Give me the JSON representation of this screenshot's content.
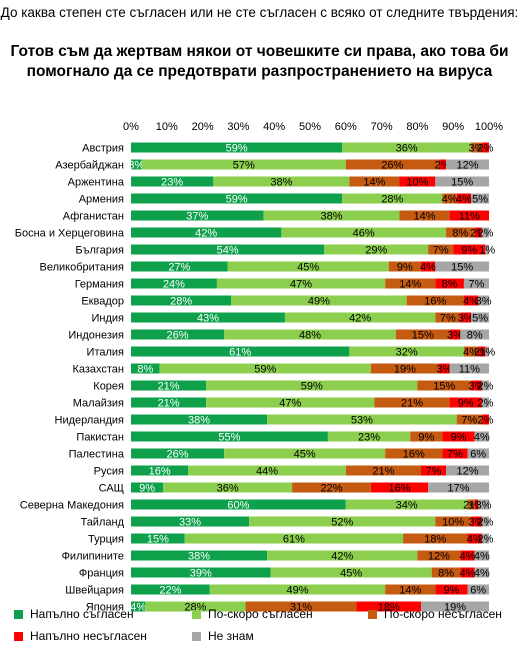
{
  "question": "До каква степен сте съгласен или не сте съгласен с всяко от следните твърдения:",
  "chart_data": {
    "type": "bar",
    "stacked": true,
    "orientation": "horizontal",
    "title": "Готов съм да жертвам някои от човешките си права, ако това би помогнало да се предотврати разпространението на вируса",
    "xlim": [
      0,
      100
    ],
    "x_ticks": [
      "0%",
      "10%",
      "20%",
      "30%",
      "40%",
      "50%",
      "60%",
      "70%",
      "80%",
      "90%",
      "100%"
    ],
    "legend_position": "bottom",
    "categories": [
      "Австрия",
      "Азербайджан",
      "Аржентина",
      "Армения",
      "Афганистан",
      "Босна и Херцеговина",
      "България",
      "Великобритания",
      "Германия",
      "Еквадор",
      "Индия",
      "Индонезия",
      "Италия",
      "Казахстан",
      "Корея",
      "Малайзия",
      "Нидерландия",
      "Пакистан",
      "Палестина",
      "Русия",
      "САЩ",
      "Северна Македония",
      "Тайланд",
      "Турция",
      "Филипините",
      "Франция",
      "Швейцария",
      "Япония"
    ],
    "series": [
      {
        "name": "Напълно съгласен",
        "color": "#0ea04b",
        "values": [
          59,
          3,
          23,
          59,
          37,
          42,
          54,
          27,
          24,
          28,
          43,
          26,
          61,
          8,
          21,
          21,
          38,
          55,
          26,
          16,
          9,
          60,
          33,
          15,
          38,
          39,
          22,
          4
        ]
      },
      {
        "name": "По-скоро съгласен",
        "color": "#8ccf4e",
        "values": [
          36,
          57,
          38,
          28,
          38,
          46,
          29,
          45,
          47,
          49,
          42,
          48,
          32,
          59,
          59,
          47,
          53,
          23,
          45,
          44,
          36,
          34,
          52,
          61,
          42,
          45,
          49,
          28
        ]
      },
      {
        "name": "По-скоро несъгласен",
        "color": "#c55a11",
        "values": [
          3,
          26,
          14,
          4,
          14,
          8,
          7,
          9,
          14,
          16,
          7,
          15,
          4,
          19,
          15,
          21,
          7,
          9,
          16,
          21,
          22,
          2,
          10,
          18,
          12,
          8,
          14,
          31
        ]
      },
      {
        "name": "Напълно несъгласен",
        "color": "#ff0000",
        "values": [
          2,
          2,
          10,
          4,
          11,
          2,
          9,
          4,
          8,
          4,
          3,
          3,
          2,
          3,
          3,
          9,
          2,
          9,
          7,
          7,
          16,
          1,
          3,
          4,
          4,
          4,
          9,
          18
        ]
      },
      {
        "name": "Не знам",
        "color": "#a6a6a6",
        "values": [
          0,
          12,
          15,
          5,
          0,
          2,
          1,
          15,
          7,
          3,
          5,
          8,
          1,
          11,
          2,
          2,
          0,
          4,
          6,
          12,
          17,
          3,
          2,
          2,
          4,
          4,
          6,
          19
        ]
      }
    ]
  }
}
